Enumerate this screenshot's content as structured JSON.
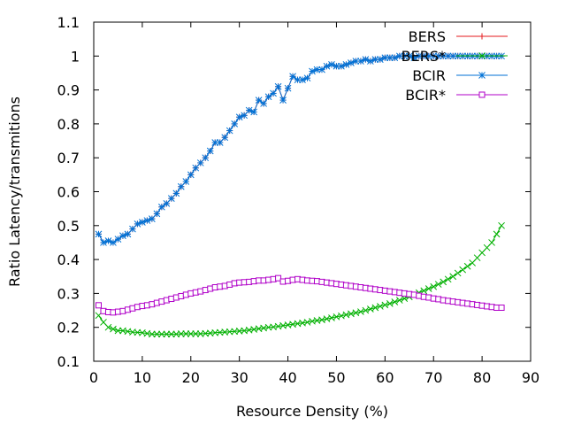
{
  "chart_data": {
    "type": "line",
    "title": "",
    "xlabel": "Resource Density (%)",
    "ylabel": "Ratio Latency/transmitions",
    "xlim": [
      0,
      90
    ],
    "ylim": [
      0.1,
      1.1
    ],
    "x_ticks": [
      0,
      10,
      20,
      30,
      40,
      50,
      60,
      70,
      80,
      90
    ],
    "y_ticks": [
      0.1,
      0.2,
      0.3,
      0.4,
      0.5,
      0.6,
      0.7,
      0.8,
      0.9,
      1.0,
      1.1
    ],
    "x_tick_labels": [
      "0",
      "10",
      "20",
      "30",
      "40",
      "50",
      "60",
      "70",
      "80",
      "90"
    ],
    "y_tick_labels": [
      "0.1",
      "0.2",
      "0.3",
      "0.4",
      "0.5",
      "0.6",
      "0.7",
      "0.8",
      "0.9",
      "1",
      "1.1"
    ],
    "grid": false,
    "legend_position": "top-right",
    "x": [
      1,
      2,
      3,
      4,
      5,
      6,
      7,
      8,
      9,
      10,
      11,
      12,
      13,
      14,
      15,
      16,
      17,
      18,
      19,
      20,
      21,
      22,
      23,
      24,
      25,
      26,
      27,
      28,
      29,
      30,
      31,
      32,
      33,
      34,
      35,
      36,
      37,
      38,
      39,
      40,
      41,
      42,
      43,
      44,
      45,
      46,
      47,
      48,
      49,
      50,
      51,
      52,
      53,
      54,
      55,
      56,
      57,
      58,
      59,
      60,
      61,
      62,
      63,
      64,
      65,
      66,
      67,
      68,
      69,
      70,
      71,
      72,
      73,
      74,
      75,
      76,
      77,
      78,
      79,
      80,
      81,
      82,
      83,
      84
    ],
    "series": [
      {
        "name": "BERS",
        "color": "#e41a1c",
        "marker": "plus",
        "values": [
          0.475,
          0.45,
          0.455,
          0.45,
          0.46,
          0.47,
          0.475,
          0.49,
          0.505,
          0.51,
          0.515,
          0.52,
          0.535,
          0.555,
          0.565,
          0.58,
          0.595,
          0.615,
          0.63,
          0.65,
          0.67,
          0.685,
          0.7,
          0.72,
          0.745,
          0.745,
          0.76,
          0.78,
          0.8,
          0.82,
          0.825,
          0.84,
          0.835,
          0.87,
          0.86,
          0.88,
          0.89,
          0.91,
          0.87,
          0.905,
          0.94,
          0.93,
          0.93,
          0.935,
          0.955,
          0.96,
          0.96,
          0.97,
          0.975,
          0.97,
          0.97,
          0.975,
          0.98,
          0.985,
          0.985,
          0.99,
          0.985,
          0.99,
          0.99,
          0.995,
          0.995,
          0.995,
          1.0,
          1.0,
          1.0,
          0.995,
          1.0,
          1.0,
          1.0,
          1.0,
          1.0,
          1.0,
          1.0,
          1.0,
          1.0,
          1.0,
          1.0,
          1.0,
          1.0,
          1.0,
          1.0,
          1.0,
          1.0,
          1.0
        ]
      },
      {
        "name": "BERS*",
        "color": "#00b000",
        "marker": "cross",
        "values": [
          0.235,
          0.215,
          0.2,
          0.195,
          0.19,
          0.19,
          0.188,
          0.186,
          0.185,
          0.184,
          0.182,
          0.18,
          0.18,
          0.18,
          0.18,
          0.18,
          0.18,
          0.181,
          0.181,
          0.181,
          0.181,
          0.181,
          0.182,
          0.183,
          0.184,
          0.185,
          0.186,
          0.187,
          0.188,
          0.189,
          0.19,
          0.192,
          0.194,
          0.196,
          0.198,
          0.2,
          0.201,
          0.203,
          0.205,
          0.207,
          0.209,
          0.211,
          0.213,
          0.215,
          0.218,
          0.22,
          0.222,
          0.225,
          0.228,
          0.231,
          0.234,
          0.237,
          0.24,
          0.243,
          0.246,
          0.25,
          0.254,
          0.258,
          0.262,
          0.266,
          0.27,
          0.275,
          0.28,
          0.285,
          0.29,
          0.296,
          0.302,
          0.308,
          0.314,
          0.32,
          0.327,
          0.334,
          0.342,
          0.35,
          0.36,
          0.37,
          0.38,
          0.39,
          0.405,
          0.42,
          0.435,
          0.45,
          0.475,
          0.5
        ]
      },
      {
        "name": "BCIR",
        "color": "#0072d6",
        "marker": "star",
        "values": [
          0.475,
          0.45,
          0.455,
          0.45,
          0.46,
          0.47,
          0.475,
          0.49,
          0.505,
          0.51,
          0.515,
          0.52,
          0.535,
          0.555,
          0.565,
          0.58,
          0.595,
          0.615,
          0.63,
          0.65,
          0.67,
          0.685,
          0.7,
          0.72,
          0.745,
          0.745,
          0.76,
          0.78,
          0.8,
          0.82,
          0.825,
          0.84,
          0.835,
          0.87,
          0.86,
          0.88,
          0.89,
          0.91,
          0.87,
          0.905,
          0.94,
          0.93,
          0.93,
          0.935,
          0.955,
          0.96,
          0.96,
          0.97,
          0.975,
          0.97,
          0.97,
          0.975,
          0.98,
          0.985,
          0.985,
          0.99,
          0.985,
          0.99,
          0.99,
          0.995,
          0.995,
          0.995,
          1.0,
          1.0,
          1.0,
          0.995,
          1.0,
          1.0,
          1.0,
          1.0,
          1.0,
          1.0,
          1.0,
          1.0,
          1.0,
          1.0,
          1.0,
          1.0,
          1.0,
          1.0,
          1.0,
          1.0,
          1.0,
          1.0
        ]
      },
      {
        "name": "BCIR*",
        "color": "#b000c8",
        "marker": "square",
        "values": [
          0.265,
          0.248,
          0.245,
          0.244,
          0.246,
          0.248,
          0.252,
          0.256,
          0.26,
          0.263,
          0.265,
          0.268,
          0.272,
          0.276,
          0.28,
          0.284,
          0.288,
          0.292,
          0.296,
          0.3,
          0.303,
          0.306,
          0.31,
          0.314,
          0.318,
          0.32,
          0.322,
          0.326,
          0.33,
          0.332,
          0.333,
          0.334,
          0.336,
          0.338,
          0.338,
          0.34,
          0.342,
          0.345,
          0.335,
          0.337,
          0.34,
          0.342,
          0.34,
          0.338,
          0.337,
          0.336,
          0.334,
          0.332,
          0.33,
          0.328,
          0.326,
          0.324,
          0.322,
          0.32,
          0.318,
          0.316,
          0.314,
          0.312,
          0.31,
          0.308,
          0.306,
          0.304,
          0.302,
          0.3,
          0.298,
          0.296,
          0.293,
          0.29,
          0.288,
          0.285,
          0.283,
          0.28,
          0.278,
          0.276,
          0.274,
          0.272,
          0.27,
          0.268,
          0.266,
          0.264,
          0.262,
          0.26,
          0.258,
          0.258
        ]
      }
    ]
  }
}
